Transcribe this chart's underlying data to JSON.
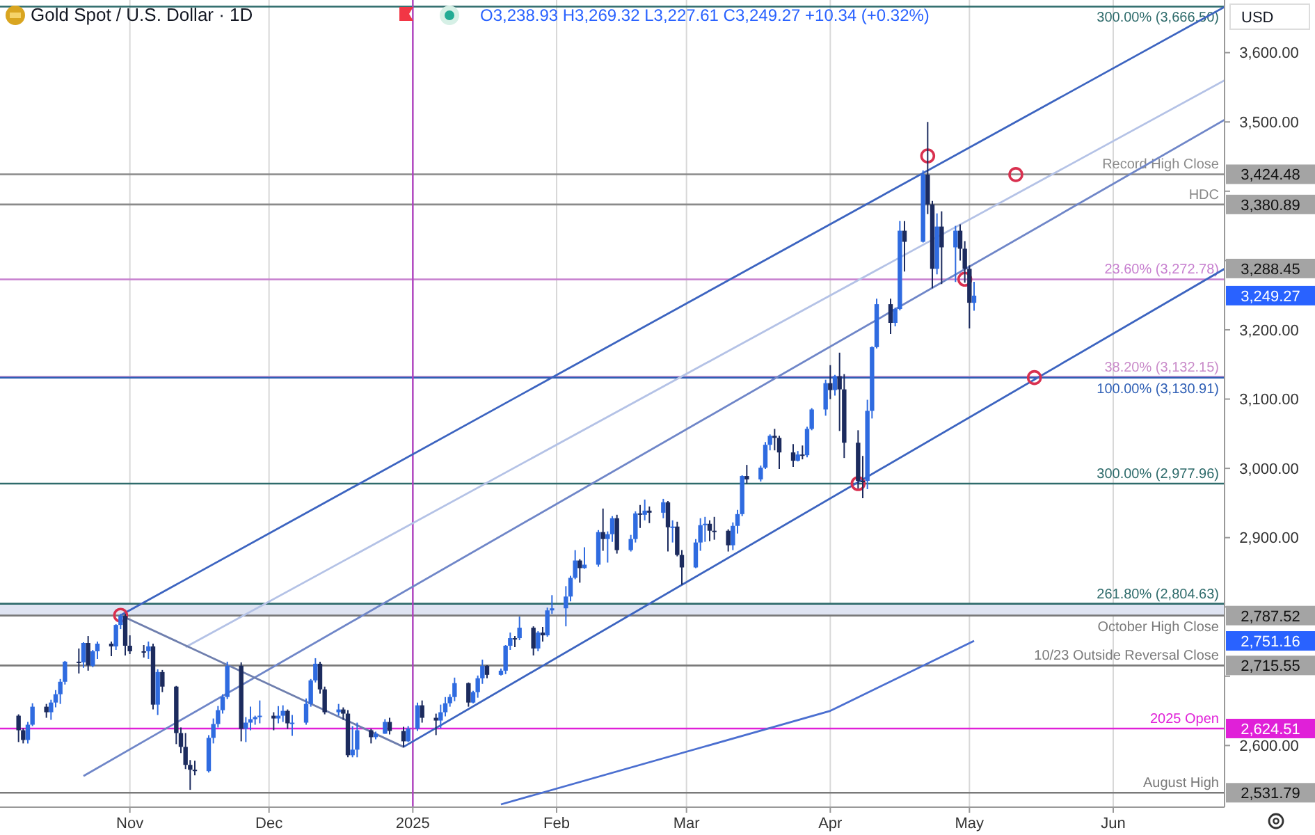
{
  "chart_data": {
    "type": "candlestick",
    "title": "Gold Spot / U.S. Dollar · 1D",
    "subtitle": "O3,238.93 H3,269.32 L3,227.61 C3,249.27 +10.34 (+0.32%)",
    "ylabel": "USD",
    "xlim": [
      "2024-10-04",
      "2025-06-25"
    ],
    "ylim": [
      2511,
      3676
    ],
    "xticks": [
      {
        "value": "2024-11-01",
        "label": "Nov"
      },
      {
        "value": "2024-12-01",
        "label": "Dec"
      },
      {
        "value": "2025-01-01",
        "label": "2025"
      },
      {
        "value": "2025-02-01",
        "label": "Feb"
      },
      {
        "value": "2025-03-01",
        "label": "Mar"
      },
      {
        "value": "2025-04-01",
        "label": "Apr"
      },
      {
        "value": "2025-05-01",
        "label": "May"
      },
      {
        "value": "2025-06-01",
        "label": "Jun"
      }
    ],
    "yticks": [
      {
        "value": 2600,
        "label": "2,600.00"
      },
      {
        "value": 2700,
        "label": null
      },
      {
        "value": 2800,
        "label": null
      },
      {
        "value": 2900,
        "label": "2,900.00"
      },
      {
        "value": 3000,
        "label": "3,000.00"
      },
      {
        "value": 3100,
        "label": "3,100.00"
      },
      {
        "value": 3200,
        "label": "3,200.00"
      },
      {
        "value": 3300,
        "label": null
      },
      {
        "value": 3400,
        "label": null
      },
      {
        "value": 3500,
        "label": "3,500.00"
      },
      {
        "value": 3600,
        "label": "3,600.00"
      }
    ],
    "grid": "x",
    "x": [
      "2024-10-08",
      "2024-10-09",
      "2024-10-10",
      "2024-10-11",
      "2024-10-14",
      "2024-10-15",
      "2024-10-16",
      "2024-10-17",
      "2024-10-18",
      "2024-10-21",
      "2024-10-22",
      "2024-10-23",
      "2024-10-24",
      "2024-10-25",
      "2024-10-28",
      "2024-10-29",
      "2024-10-30",
      "2024-10-31",
      "2024-11-01",
      "2024-11-04",
      "2024-11-05",
      "2024-11-06",
      "2024-11-07",
      "2024-11-08",
      "2024-11-11",
      "2024-11-12",
      "2024-11-13",
      "2024-11-14",
      "2024-11-15",
      "2024-11-18",
      "2024-11-19",
      "2024-11-20",
      "2024-11-21",
      "2024-11-22",
      "2024-11-25",
      "2024-11-26",
      "2024-11-27",
      "2024-11-28",
      "2024-11-29",
      "2024-12-02",
      "2024-12-03",
      "2024-12-04",
      "2024-12-05",
      "2024-12-06",
      "2024-12-09",
      "2024-12-10",
      "2024-12-11",
      "2024-12-12",
      "2024-12-13",
      "2024-12-16",
      "2024-12-17",
      "2024-12-18",
      "2024-12-19",
      "2024-12-20",
      "2024-12-23",
      "2024-12-24",
      "2024-12-26",
      "2024-12-27",
      "2024-12-30",
      "2024-12-31",
      "2025-01-02",
      "2025-01-03",
      "2025-01-06",
      "2025-01-07",
      "2025-01-08",
      "2025-01-09",
      "2025-01-10",
      "2025-01-13",
      "2025-01-14",
      "2025-01-15",
      "2025-01-16",
      "2025-01-17",
      "2025-01-20",
      "2025-01-21",
      "2025-01-22",
      "2025-01-23",
      "2025-01-24",
      "2025-01-27",
      "2025-01-28",
      "2025-01-29",
      "2025-01-30",
      "2025-01-31",
      "2025-02-03",
      "2025-02-04",
      "2025-02-05",
      "2025-02-06",
      "2025-02-07",
      "2025-02-10",
      "2025-02-11",
      "2025-02-12",
      "2025-02-13",
      "2025-02-14",
      "2025-02-17",
      "2025-02-18",
      "2025-02-19",
      "2025-02-20",
      "2025-02-21",
      "2025-02-24",
      "2025-02-25",
      "2025-02-26",
      "2025-02-27",
      "2025-02-28",
      "2025-03-03",
      "2025-03-04",
      "2025-03-05",
      "2025-03-06",
      "2025-03-07",
      "2025-03-10",
      "2025-03-11",
      "2025-03-12",
      "2025-03-13",
      "2025-03-14",
      "2025-03-17",
      "2025-03-18",
      "2025-03-19",
      "2025-03-20",
      "2025-03-21",
      "2025-03-24",
      "2025-03-25",
      "2025-03-26",
      "2025-03-27",
      "2025-03-28",
      "2025-03-31",
      "2025-04-01",
      "2025-04-02",
      "2025-04-03",
      "2025-04-04",
      "2025-04-07",
      "2025-04-08",
      "2025-04-09",
      "2025-04-10",
      "2025-04-11",
      "2025-04-14",
      "2025-04-15",
      "2025-04-16",
      "2025-04-17",
      "2025-04-21",
      "2025-04-22",
      "2025-04-23",
      "2025-04-24",
      "2025-04-25",
      "2025-04-28",
      "2025-04-29",
      "2025-04-30",
      "2025-05-01",
      "2025-05-02"
    ],
    "ohlc": [
      [
        2643,
        2645,
        2605,
        2622
      ],
      [
        2622,
        2625,
        2603,
        2608
      ],
      [
        2608,
        2634,
        2603,
        2630
      ],
      [
        2630,
        2661,
        2628,
        2656
      ],
      [
        2656,
        2660,
        2640,
        2648
      ],
      [
        2648,
        2666,
        2637,
        2662
      ],
      [
        2662,
        2680,
        2655,
        2674
      ],
      [
        2674,
        2696,
        2660,
        2692
      ],
      [
        2692,
        2722,
        2688,
        2721
      ],
      [
        2721,
        2740,
        2704,
        2720
      ],
      [
        2720,
        2749,
        2712,
        2748
      ],
      [
        2748,
        2758,
        2708,
        2715.55
      ],
      [
        2715,
        2738,
        2713,
        2736
      ],
      [
        2736,
        2750,
        2725,
        2747
      ],
      [
        2747,
        2750,
        2729,
        2743
      ],
      [
        2743,
        2775,
        2738,
        2774
      ],
      [
        2774,
        2790,
        2768,
        2787.52
      ],
      [
        2787,
        2790,
        2730,
        2744
      ],
      [
        2744,
        2759,
        2732,
        2736
      ],
      [
        2736,
        2745,
        2727,
        2736
      ],
      [
        2736,
        2750,
        2725,
        2743
      ],
      [
        2743,
        2747,
        2652,
        2659
      ],
      [
        2659,
        2710,
        2644,
        2706
      ],
      [
        2706,
        2709,
        2677,
        2685
      ],
      [
        2685,
        2686,
        2602,
        2618
      ],
      [
        2618,
        2626,
        2589,
        2598
      ],
      [
        2598,
        2618,
        2566,
        2572
      ],
      [
        2572,
        2579,
        2536,
        2565
      ],
      [
        2565,
        2578,
        2557,
        2563
      ],
      [
        2563,
        2615,
        2561,
        2611
      ],
      [
        2611,
        2639,
        2603,
        2631
      ],
      [
        2631,
        2657,
        2626,
        2651
      ],
      [
        2651,
        2674,
        2646,
        2670
      ],
      [
        2670,
        2721,
        2667,
        2715
      ],
      [
        2715,
        2720,
        2606,
        2624
      ],
      [
        2624,
        2641,
        2605,
        2633
      ],
      [
        2633,
        2656,
        2622,
        2638
      ],
      [
        2638,
        2643,
        2630,
        2641
      ],
      [
        2641,
        2665,
        2632,
        2643
      ],
      [
        2643,
        2648,
        2622,
        2639
      ],
      [
        2639,
        2657,
        2632,
        2643
      ],
      [
        2643,
        2658,
        2634,
        2650
      ],
      [
        2650,
        2652,
        2624,
        2632
      ],
      [
        2632,
        2644,
        2614,
        2633
      ],
      [
        2633,
        2668,
        2630,
        2660
      ],
      [
        2660,
        2696,
        2656,
        2694
      ],
      [
        2694,
        2726,
        2691,
        2718
      ],
      [
        2718,
        2721,
        2675,
        2681
      ],
      [
        2681,
        2685,
        2645,
        2648
      ],
      [
        2648,
        2660,
        2643,
        2652
      ],
      [
        2652,
        2655,
        2637,
        2646
      ],
      [
        2646,
        2651,
        2583,
        2586
      ],
      [
        2586,
        2628,
        2583,
        2594
      ],
      [
        2594,
        2633,
        2583,
        2622
      ],
      [
        2622,
        2624,
        2603,
        2612
      ],
      [
        2612,
        2620,
        2609,
        2617
      ],
      [
        2617,
        2638,
        2617,
        2634
      ],
      [
        2634,
        2640,
        2616,
        2621
      ],
      [
        2621,
        2627,
        2597,
        2606
      ],
      [
        2606,
        2628,
        2605,
        2624.51
      ],
      [
        2624,
        2662,
        2621,
        2658
      ],
      [
        2658,
        2665,
        2633,
        2640
      ],
      [
        2640,
        2646,
        2615,
        2636
      ],
      [
        2636,
        2659,
        2625,
        2648
      ],
      [
        2648,
        2670,
        2642,
        2661
      ],
      [
        2661,
        2674,
        2656,
        2670
      ],
      [
        2670,
        2698,
        2664,
        2690
      ],
      [
        2690,
        2691,
        2656,
        2662
      ],
      [
        2662,
        2679,
        2661,
        2677
      ],
      [
        2677,
        2701,
        2669,
        2697
      ],
      [
        2697,
        2724,
        2689,
        2715
      ],
      [
        2715,
        2716,
        2697,
        2702
      ],
      [
        2702,
        2711,
        2701,
        2708
      ],
      [
        2708,
        2745,
        2703,
        2744
      ],
      [
        2744,
        2763,
        2738,
        2755
      ],
      [
        2755,
        2758,
        2742,
        2755
      ],
      [
        2755,
        2786,
        2752,
        2770
      ],
      [
        2770,
        2772,
        2730,
        2740
      ],
      [
        2740,
        2765,
        2736,
        2763
      ],
      [
        2763,
        2771,
        2750,
        2759
      ],
      [
        2759,
        2799,
        2757,
        2795
      ],
      [
        2795,
        2817,
        2790,
        2798
      ],
      [
        2798,
        2830,
        2772,
        2815
      ],
      [
        2815,
        2845,
        2808,
        2842
      ],
      [
        2842,
        2882,
        2840,
        2867
      ],
      [
        2867,
        2869,
        2835,
        2856
      ],
      [
        2856,
        2886,
        2855,
        2861
      ],
      [
        2861,
        2911,
        2858,
        2908
      ],
      [
        2908,
        2942,
        2881,
        2898
      ],
      [
        2898,
        2909,
        2864,
        2905
      ],
      [
        2905,
        2931,
        2894,
        2928
      ],
      [
        2928,
        2933,
        2877,
        2882
      ],
      [
        2882,
        2904,
        2880,
        2898
      ],
      [
        2898,
        2938,
        2893,
        2935
      ],
      [
        2935,
        2947,
        2914,
        2933
      ],
      [
        2933,
        2955,
        2925,
        2939
      ],
      [
        2939,
        2945,
        2921,
        2936
      ],
      [
        2936,
        2956,
        2928,
        2951
      ],
      [
        2951,
        2953,
        2880,
        2915
      ],
      [
        2915,
        2925,
        2893,
        2916
      ],
      [
        2916,
        2923,
        2873,
        2875
      ],
      [
        2875,
        2882,
        2832,
        2857
      ],
      [
        2857,
        2898,
        2856,
        2893
      ],
      [
        2893,
        2928,
        2881,
        2918
      ],
      [
        2918,
        2930,
        2894,
        2920
      ],
      [
        2920,
        2925,
        2895,
        2910
      ],
      [
        2910,
        2930,
        2897,
        2910
      ],
      [
        2910,
        2912,
        2880,
        2889
      ],
      [
        2889,
        2922,
        2882,
        2917
      ],
      [
        2917,
        2940,
        2906,
        2934
      ],
      [
        2934,
        2990,
        2931,
        2989
      ],
      [
        2989,
        3005,
        2978,
        2984
      ],
      [
        2984,
        3004,
        2981,
        3001
      ],
      [
        3001,
        3038,
        2999,
        3034
      ],
      [
        3034,
        3049,
        3026,
        3047
      ],
      [
        3047,
        3057,
        3026,
        3044
      ],
      [
        3044,
        3047,
        2999,
        3023
      ],
      [
        3023,
        3035,
        3002,
        3011
      ],
      [
        3011,
        3025,
        3010,
        3020
      ],
      [
        3020,
        3033,
        3013,
        3019
      ],
      [
        3019,
        3060,
        3016,
        3057
      ],
      [
        3057,
        3087,
        3055,
        3085
      ],
      [
        3085,
        3128,
        3076,
        3123
      ],
      [
        3123,
        3149,
        3100,
        3113
      ],
      [
        3113,
        3135,
        3105,
        3133
      ],
      [
        3133,
        3167,
        3054,
        3114
      ],
      [
        3114,
        3136,
        3015,
        3037
      ],
      [
        3037,
        3055,
        2971,
        2982
      ],
      [
        2982,
        3018,
        2957,
        2982
      ],
      [
        2982,
        3099,
        2970,
        3083
      ],
      [
        3083,
        3176,
        3072,
        3175
      ],
      [
        3175,
        3245,
        3173,
        3237
      ],
      [
        3237,
        3245,
        3194,
        3210
      ],
      [
        3210,
        3232,
        3205,
        3230
      ],
      [
        3230,
        3357,
        3228,
        3343
      ],
      [
        3343,
        3357,
        3284,
        3327
      ],
      [
        3327,
        3430,
        3326,
        3424.48
      ],
      [
        3424,
        3500,
        3367,
        3381
      ],
      [
        3381,
        3386,
        3260,
        3288
      ],
      [
        3288,
        3368,
        3280,
        3349
      ],
      [
        3349,
        3371,
        3266,
        3319
      ],
      [
        3319,
        3350,
        3269,
        3343
      ],
      [
        3343,
        3352,
        3300,
        3317
      ],
      [
        3317,
        3328,
        3268,
        3288
      ],
      [
        3288,
        3293,
        3202,
        3239
      ],
      [
        3238.93,
        3269.32,
        3227.61,
        3249.27
      ]
    ],
    "colors": [
      "#1c2b5e",
      "#1c2b5e",
      "#2f6be0",
      "#2f6be0",
      "#1c2b5e",
      "#2f6be0",
      "#2f6be0",
      "#2f6be0",
      "#2f6be0",
      "#1c2b5e",
      "#2f6be0",
      "#1c2b5e",
      "#2f6be0",
      "#2f6be0",
      "#1c2b5e",
      "#2f6be0",
      "#2f6be0",
      "#1c2b5e",
      "#1c2b5e",
      "#1c2b5e",
      "#2f6be0",
      "#1c2b5e",
      "#2f6be0",
      "#1c2b5e",
      "#1c2b5e",
      "#1c2b5e",
      "#1c2b5e",
      "#1c2b5e",
      "#1c2b5e",
      "#2f6be0",
      "#2f6be0",
      "#2f6be0",
      "#2f6be0",
      "#2f6be0",
      "#1c2b5e",
      "#2f6be0",
      "#2f6be0",
      "#2f6be0",
      "#2f6be0",
      "#1c2b5e",
      "#2f6be0",
      "#2f6be0",
      "#1c2b5e",
      "#2f6be0",
      "#2f6be0",
      "#2f6be0",
      "#2f6be0",
      "#1c2b5e",
      "#1c2b5e",
      "#2f6be0",
      "#1c2b5e",
      "#1c2b5e",
      "#2f6be0",
      "#2f6be0",
      "#1c2b5e",
      "#2f6be0",
      "#2f6be0",
      "#1c2b5e",
      "#1c2b5e",
      "#2f6be0",
      "#2f6be0",
      "#1c2b5e",
      "#1c2b5e",
      "#2f6be0",
      "#2f6be0",
      "#2f6be0",
      "#2f6be0",
      "#1c2b5e",
      "#2f6be0",
      "#2f6be0",
      "#2f6be0",
      "#1c2b5e",
      "#2f6be0",
      "#2f6be0",
      "#2f6be0",
      "#1c2b5e",
      "#2f6be0",
      "#1c2b5e",
      "#2f6be0",
      "#1c2b5e",
      "#2f6be0",
      "#2f6be0",
      "#2f6be0",
      "#2f6be0",
      "#2f6be0",
      "#1c2b5e",
      "#2f6be0",
      "#2f6be0",
      "#1c2b5e",
      "#2f6be0",
      "#2f6be0",
      "#1c2b5e",
      "#2f6be0",
      "#2f6be0",
      "#1c2b5e",
      "#2f6be0",
      "#1c2b5e",
      "#2f6be0",
      "#1c2b5e",
      "#2f6be0",
      "#1c2b5e",
      "#1c2b5e",
      "#2f6be0",
      "#2f6be0",
      "#2f6be0",
      "#1c2b5e",
      "#1c2b5e",
      "#1c2b5e",
      "#2f6be0",
      "#2f6be0",
      "#2f6be0",
      "#1c2b5e",
      "#2f6be0",
      "#2f6be0",
      "#2f6be0",
      "#1c2b5e",
      "#1c2b5e",
      "#1c2b5e",
      "#2f6be0",
      "#1c2b5e",
      "#2f6be0",
      "#2f6be0",
      "#2f6be0",
      "#1c2b5e",
      "#2f6be0",
      "#1c2b5e",
      "#1c2b5e",
      "#1c2b5e",
      "#1c2b5e",
      "#2f6be0",
      "#2f6be0",
      "#2f6be0",
      "#1c2b5e",
      "#2f6be0",
      "#2f6be0",
      "#1c2b5e",
      "#2f6be0",
      "#1c2b5e",
      "#1c2b5e",
      "#2f6be0",
      "#1c2b5e",
      "#2f6be0",
      "#1c2b5e",
      "#1c2b5e",
      "#1c2b5e",
      "#2f6be0"
    ],
    "series": [
      {
        "type": "line",
        "color": "#3c64c0",
        "x": [
          "2024-10-30",
          "2025-06-25"
        ],
        "values": [
          2788,
          3666
        ]
      },
      {
        "type": "line",
        "color": "#3c64c0",
        "x": [
          "2024-12-30",
          "2025-06-25"
        ],
        "values": [
          2598,
          3288
        ]
      },
      {
        "type": "line",
        "color": "#6f86c8",
        "x": [
          "2024-10-22",
          "2025-06-25"
        ],
        "values": [
          2556,
          3503
        ]
      },
      {
        "type": "line",
        "color": "#b4c2e6",
        "x": [
          "2024-11-13",
          "2025-06-25"
        ],
        "values": [
          2742,
          3560
        ]
      },
      {
        "type": "line",
        "color": "#6f7fae",
        "x": [
          "2024-10-30",
          "2024-12-30"
        ],
        "values": [
          2788,
          2598
        ]
      },
      {
        "type": "line",
        "color": "#4b6fd0",
        "x": [
          "2025-01-20",
          "2025-04-01",
          "2025-05-02"
        ],
        "values": [
          2515,
          2650,
          2751
        ]
      },
      {
        "type": "scatter",
        "color": "#d9304f",
        "marker": "circle",
        "x": [
          "2024-10-30",
          "2025-04-22",
          "2025-05-11",
          "2025-04-30",
          "2025-04-07",
          "2025-05-15"
        ],
        "values": [
          2788,
          3451,
          3424,
          3273,
          2978,
          3131
        ]
      }
    ],
    "ref_lines": [
      {
        "axis": "y",
        "value": 3666.5,
        "label": "300.00% (3,666.50)",
        "color": "#2e6b6b"
      },
      {
        "axis": "y",
        "value": 3424.48,
        "label": "Record High Close",
        "color": "#8a8a8a"
      },
      {
        "axis": "y",
        "value": 3380.89,
        "label": "HDC",
        "color": "#8a8a8a"
      },
      {
        "axis": "y",
        "value": 3272.78,
        "label": "23.60% (3,272.78)",
        "color": "#c77fcf"
      },
      {
        "axis": "y",
        "value": 3132.15,
        "label": "38.20% (3,132.15)",
        "color": "#c98bc9"
      },
      {
        "axis": "y",
        "value": 3130.91,
        "label": "100.00% (3,130.91)",
        "color": "#2f5fb5"
      },
      {
        "axis": "y",
        "value": 2977.96,
        "label": "300.00% (2,977.96)",
        "color": "#2e6b6b"
      },
      {
        "axis": "y",
        "value": 2804.63,
        "label": "261.80% (2,804.63)",
        "color": "#2e6b6b"
      },
      {
        "axis": "y",
        "value": 2787.52,
        "label": "October High Close",
        "color": "#7a7a7a"
      },
      {
        "axis": "y",
        "value": 2715.55,
        "label": "10/23 Outside Reversal Close",
        "color": "#7a7a7a"
      },
      {
        "axis": "y",
        "value": 2624.51,
        "label": "2025 Open",
        "color": "#e020d8"
      },
      {
        "axis": "y",
        "value": 2531.79,
        "label": "August High",
        "color": "#7a7a7a"
      },
      {
        "axis": "x",
        "value": "2025-01-01",
        "label": null,
        "color": "#b040c0"
      }
    ],
    "bands": [
      {
        "axis": "y",
        "from": 2787.52,
        "to": 2804.63,
        "label": null,
        "color": "#dfe4f2"
      }
    ],
    "annotations": [
      {
        "text": "3,424.48",
        "x": "2025-06-25",
        "y": 3424.48
      },
      {
        "text": "3,380.89",
        "x": "2025-06-25",
        "y": 3380.89
      },
      {
        "text": "3,288.45",
        "x": "2025-06-25",
        "y": 3288.45
      },
      "3,249.27",
      {
        "text": "2,787.52",
        "x": "2025-06-25",
        "y": 2787.52
      },
      "2,751.16",
      {
        "text": "2,715.55",
        "x": "2025-06-25",
        "y": 2715.55
      },
      {
        "text": "2,624.51",
        "x": "2025-06-25",
        "y": 2624.51
      },
      {
        "text": "2,531.79",
        "x": "2025-06-25",
        "y": 2531.79
      }
    ]
  }
}
